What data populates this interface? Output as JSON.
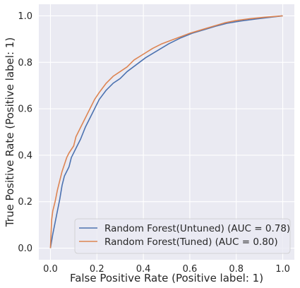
{
  "chart_data": {
    "type": "line",
    "title": "",
    "xlabel": "False Positive Rate (Positive label: 1)",
    "ylabel": "True Positive Rate (Positive label: 1)",
    "xlim": [
      -0.05,
      1.05
    ],
    "ylim": [
      -0.05,
      1.05
    ],
    "x_ticks": [
      0.0,
      0.2,
      0.4,
      0.6,
      0.8,
      1.0
    ],
    "y_ticks": [
      0.0,
      0.2,
      0.4,
      0.6,
      0.8,
      1.0
    ],
    "x_tick_labels": [
      "0.0",
      "0.2",
      "0.4",
      "0.6",
      "0.8",
      "1.0"
    ],
    "y_tick_labels": [
      "0.0",
      "0.2",
      "0.4",
      "0.6",
      "0.8",
      "1.0"
    ],
    "grid": true,
    "legend_position": "bottom-right",
    "series": [
      {
        "name": "Random Forest(Untuned) (AUC = 0.78)",
        "color": "#4c72b0",
        "points": [
          [
            0.0,
            0.0
          ],
          [
            0.01,
            0.06
          ],
          [
            0.02,
            0.11
          ],
          [
            0.03,
            0.16
          ],
          [
            0.04,
            0.21
          ],
          [
            0.05,
            0.27
          ],
          [
            0.06,
            0.31
          ],
          [
            0.08,
            0.35
          ],
          [
            0.09,
            0.39
          ],
          [
            0.11,
            0.43
          ],
          [
            0.13,
            0.47
          ],
          [
            0.15,
            0.52
          ],
          [
            0.17,
            0.56
          ],
          [
            0.19,
            0.6
          ],
          [
            0.21,
            0.64
          ],
          [
            0.24,
            0.68
          ],
          [
            0.27,
            0.71
          ],
          [
            0.3,
            0.73
          ],
          [
            0.33,
            0.76
          ],
          [
            0.37,
            0.79
          ],
          [
            0.41,
            0.82
          ],
          [
            0.46,
            0.85
          ],
          [
            0.51,
            0.88
          ],
          [
            0.56,
            0.905
          ],
          [
            0.61,
            0.925
          ],
          [
            0.66,
            0.94
          ],
          [
            0.71,
            0.955
          ],
          [
            0.76,
            0.968
          ],
          [
            0.82,
            0.978
          ],
          [
            0.88,
            0.986
          ],
          [
            0.94,
            0.993
          ],
          [
            1.0,
            1.0
          ]
        ]
      },
      {
        "name": "Random Forest(Tuned) (AUC = 0.80)",
        "color": "#dd8452",
        "points": [
          [
            0.0,
            0.0
          ],
          [
            0.005,
            0.12
          ],
          [
            0.01,
            0.16
          ],
          [
            0.02,
            0.2
          ],
          [
            0.03,
            0.25
          ],
          [
            0.04,
            0.29
          ],
          [
            0.05,
            0.33
          ],
          [
            0.06,
            0.36
          ],
          [
            0.07,
            0.39
          ],
          [
            0.08,
            0.41
          ],
          [
            0.1,
            0.44
          ],
          [
            0.11,
            0.48
          ],
          [
            0.13,
            0.52
          ],
          [
            0.15,
            0.56
          ],
          [
            0.17,
            0.6
          ],
          [
            0.19,
            0.64
          ],
          [
            0.21,
            0.67
          ],
          [
            0.24,
            0.71
          ],
          [
            0.27,
            0.74
          ],
          [
            0.3,
            0.76
          ],
          [
            0.33,
            0.78
          ],
          [
            0.36,
            0.81
          ],
          [
            0.4,
            0.835
          ],
          [
            0.44,
            0.86
          ],
          [
            0.48,
            0.88
          ],
          [
            0.52,
            0.895
          ],
          [
            0.56,
            0.91
          ],
          [
            0.6,
            0.925
          ],
          [
            0.65,
            0.94
          ],
          [
            0.7,
            0.955
          ],
          [
            0.75,
            0.97
          ],
          [
            0.8,
            0.98
          ],
          [
            0.86,
            0.988
          ],
          [
            0.92,
            0.994
          ],
          [
            1.0,
            1.0
          ]
        ]
      }
    ]
  }
}
